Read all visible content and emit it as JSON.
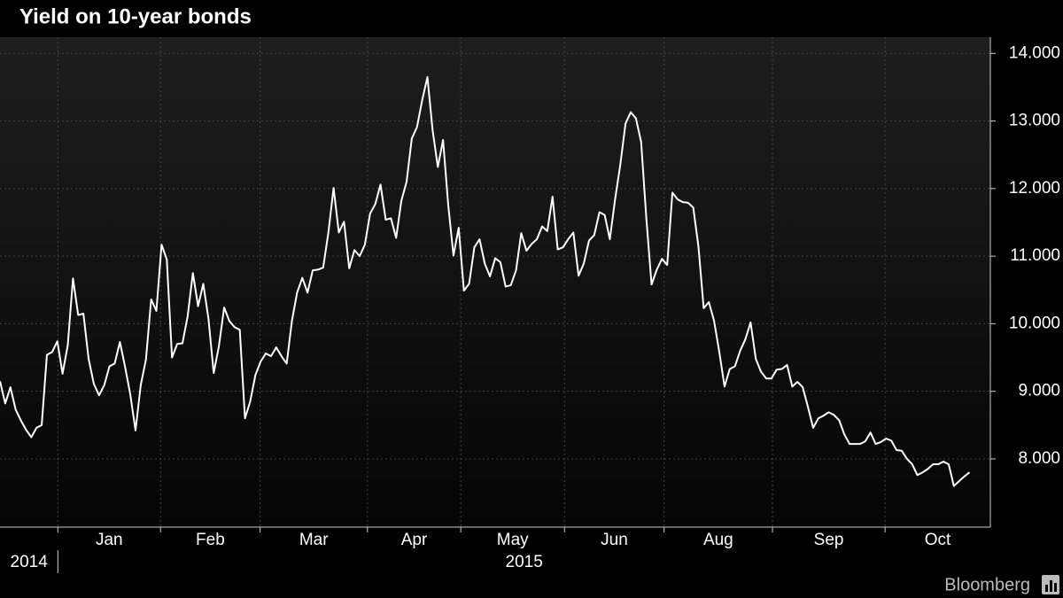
{
  "chart_data": {
    "type": "line",
    "title": "Yield on 10-year bonds",
    "values": [
      9.15,
      8.82,
      9.06,
      8.73,
      8.57,
      8.43,
      8.32,
      8.46,
      8.5,
      9.54,
      9.58,
      9.74,
      9.26,
      9.68,
      10.67,
      10.13,
      10.15,
      9.48,
      9.11,
      8.94,
      9.09,
      9.37,
      9.41,
      9.73,
      9.36,
      8.95,
      8.42,
      9.09,
      9.47,
      10.36,
      10.19,
      11.17,
      10.95,
      9.5,
      9.7,
      9.71,
      10.11,
      10.75,
      10.26,
      10.59,
      10.07,
      9.27,
      9.67,
      10.24,
      10.04,
      9.95,
      9.91,
      8.6,
      8.85,
      9.24,
      9.44,
      9.56,
      9.52,
      9.65,
      9.52,
      9.41,
      10.04,
      10.46,
      10.68,
      10.46,
      10.79,
      10.8,
      10.83,
      11.35,
      12.01,
      11.35,
      11.51,
      10.82,
      11.09,
      11.0,
      11.17,
      11.63,
      11.77,
      12.06,
      11.54,
      11.56,
      11.27,
      11.82,
      12.1,
      12.74,
      12.91,
      13.31,
      13.65,
      12.86,
      12.32,
      12.72,
      11.75,
      11.01,
      11.42,
      10.49,
      10.59,
      11.13,
      11.25,
      10.89,
      10.7,
      10.97,
      10.91,
      10.55,
      10.57,
      10.79,
      11.34,
      11.08,
      11.18,
      11.25,
      11.44,
      11.37,
      11.88,
      11.1,
      11.13,
      11.25,
      11.35,
      10.71,
      10.89,
      11.23,
      11.31,
      11.65,
      11.61,
      11.25,
      11.84,
      12.35,
      12.96,
      13.13,
      13.04,
      12.69,
      11.56,
      10.58,
      10.8,
      10.96,
      10.87,
      11.94,
      11.84,
      11.8,
      11.79,
      11.72,
      11.14,
      10.23,
      10.32,
      10.04,
      9.58,
      9.07,
      9.33,
      9.37,
      9.6,
      9.77,
      10.02,
      9.48,
      9.29,
      9.19,
      9.19,
      9.32,
      9.33,
      9.39,
      9.07,
      9.14,
      9.06,
      8.77,
      8.46,
      8.6,
      8.64,
      8.69,
      8.65,
      8.57,
      8.36,
      8.22,
      8.22,
      8.22,
      8.26,
      8.39,
      8.22,
      8.25,
      8.3,
      8.27,
      8.13,
      8.12,
      8.0,
      7.92,
      7.76,
      7.8,
      7.85,
      7.92,
      7.92,
      7.96,
      7.92,
      7.6,
      7.67,
      7.74,
      7.8
    ],
    "color": "#ffffff",
    "xlim": [
      0,
      190
    ],
    "xticks": [
      11.1,
      30.8,
      49.9,
      70.5,
      88.4,
      108.3,
      127.4,
      148.2,
      169.8
    ],
    "month_labels": [
      "Jan",
      "Feb",
      "Mar",
      "Apr",
      "May",
      "Jun",
      "Aug",
      "Sep",
      "Oct"
    ],
    "year_labels": [
      "2014",
      "2015"
    ],
    "ylim": [
      6.99,
      14.24
    ],
    "yticks": [
      {
        "value": 8,
        "label": "8.000"
      },
      {
        "value": 9,
        "label": "9.000"
      },
      {
        "value": 10,
        "label": "10.000"
      },
      {
        "value": 11,
        "label": "11.000"
      },
      {
        "value": 12,
        "label": "12.000"
      },
      {
        "value": 13,
        "label": "13.000"
      },
      {
        "value": 14,
        "label": "14.000"
      }
    ],
    "grid": true,
    "source": "Bloomberg"
  }
}
